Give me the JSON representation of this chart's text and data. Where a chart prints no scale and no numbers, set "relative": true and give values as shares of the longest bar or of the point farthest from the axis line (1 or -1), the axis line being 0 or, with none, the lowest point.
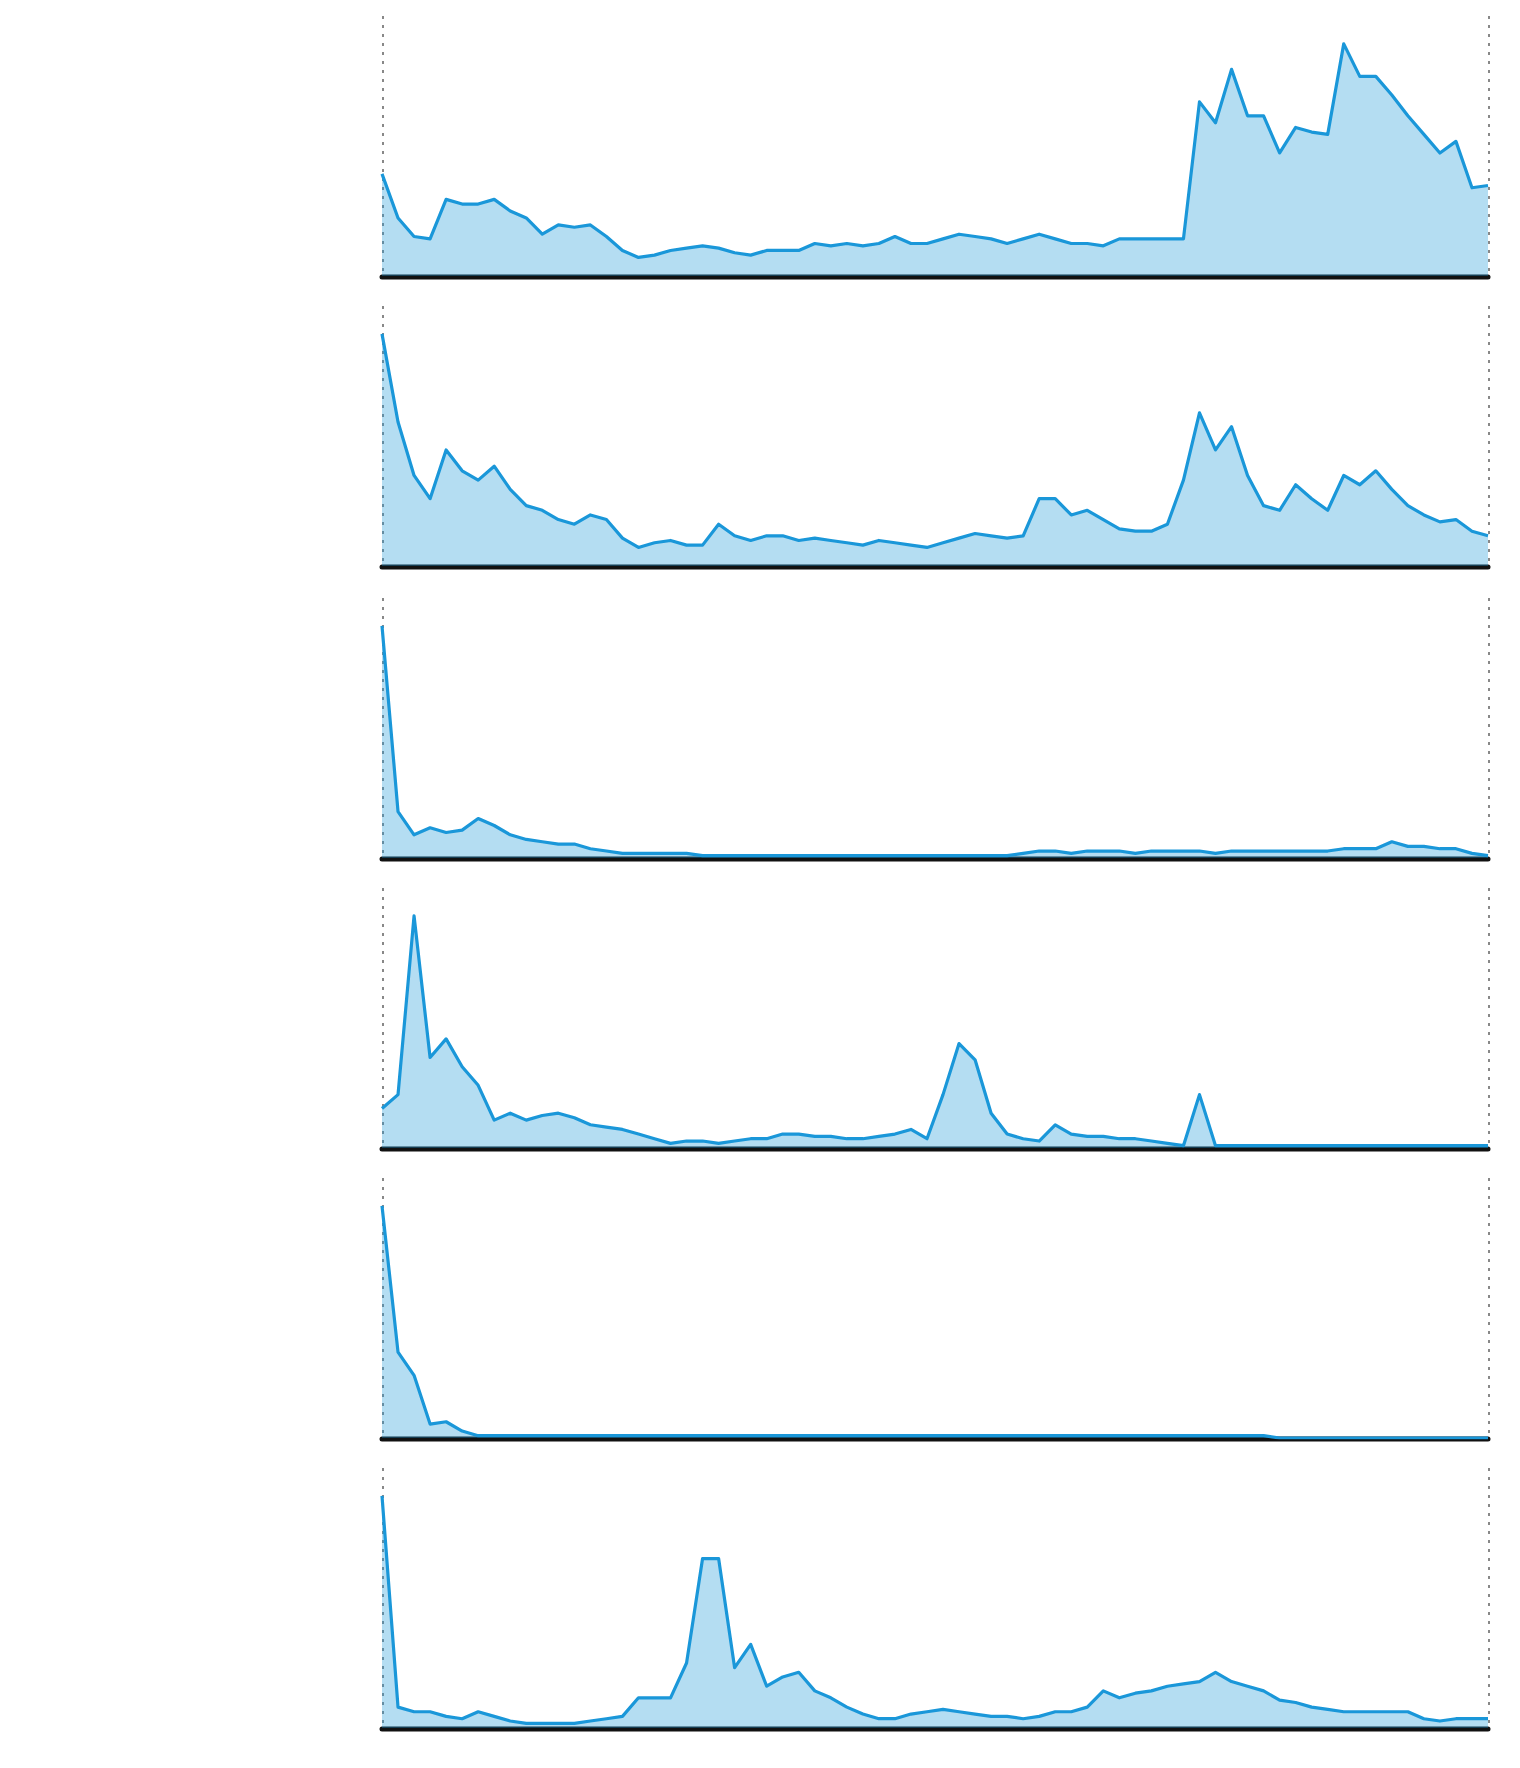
{
  "chart_data": [
    {
      "type": "area",
      "relative": true,
      "color": "#1a97d9",
      "categories": [
        null,
        null,
        null,
        null,
        null,
        null,
        null,
        null,
        null,
        null,
        null,
        null,
        null,
        null,
        null,
        null,
        null,
        null,
        null,
        null,
        null,
        null,
        null,
        null,
        null,
        null,
        null,
        null,
        null,
        null,
        null,
        null,
        null,
        null,
        null,
        null,
        null,
        null,
        null,
        null,
        null,
        null,
        null,
        null,
        null,
        null,
        null,
        null,
        null,
        null,
        null,
        null,
        null,
        null,
        null,
        null,
        null,
        null,
        null,
        null,
        null,
        null,
        null,
        null,
        null,
        null,
        null,
        null,
        null,
        null
      ],
      "values": [
        0.44,
        0.25,
        0.17,
        0.16,
        0.33,
        0.31,
        0.31,
        0.33,
        0.28,
        0.25,
        0.18,
        0.22,
        0.21,
        0.22,
        0.17,
        0.11,
        0.08,
        0.09,
        0.11,
        0.12,
        0.13,
        0.12,
        0.1,
        0.09,
        0.11,
        0.11,
        0.11,
        0.14,
        0.13,
        0.14,
        0.13,
        0.14,
        0.17,
        0.14,
        0.14,
        0.16,
        0.18,
        0.17,
        0.16,
        0.14,
        0.16,
        0.18,
        0.16,
        0.14,
        0.14,
        0.13,
        0.16,
        0.16,
        0.16,
        0.16,
        0.16,
        0.75,
        0.66,
        0.89,
        0.69,
        0.69,
        0.53,
        0.64,
        0.62,
        0.61,
        1,
        0.86,
        0.86,
        0.78,
        0.69,
        0.61,
        0.53,
        0.58,
        0.38,
        0.39
      ]
    },
    {
      "type": "area",
      "relative": true,
      "color": "#1a97d9",
      "categories": [
        null,
        null,
        null,
        null,
        null,
        null,
        null,
        null,
        null,
        null,
        null,
        null,
        null,
        null,
        null,
        null,
        null,
        null,
        null,
        null,
        null,
        null,
        null,
        null,
        null,
        null,
        null,
        null,
        null,
        null,
        null,
        null,
        null,
        null,
        null,
        null,
        null,
        null,
        null,
        null,
        null,
        null,
        null,
        null,
        null,
        null,
        null,
        null,
        null,
        null,
        null,
        null,
        null,
        null,
        null,
        null,
        null,
        null,
        null,
        null,
        null,
        null,
        null,
        null,
        null,
        null,
        null,
        null,
        null,
        null
      ],
      "values": [
        1,
        0.62,
        0.39,
        0.29,
        0.5,
        0.41,
        0.37,
        0.43,
        0.33,
        0.26,
        0.24,
        0.2,
        0.18,
        0.22,
        0.2,
        0.12,
        0.08,
        0.1,
        0.11,
        0.09,
        0.09,
        0.18,
        0.13,
        0.11,
        0.13,
        0.13,
        0.11,
        0.12,
        0.11,
        0.1,
        0.09,
        0.11,
        0.1,
        0.09,
        0.08,
        0.1,
        0.12,
        0.14,
        0.13,
        0.12,
        0.13,
        0.29,
        0.29,
        0.22,
        0.24,
        0.2,
        0.16,
        0.15,
        0.15,
        0.18,
        0.37,
        0.66,
        0.5,
        0.6,
        0.39,
        0.26,
        0.24,
        0.35,
        0.29,
        0.24,
        0.39,
        0.35,
        0.41,
        0.33,
        0.26,
        0.22,
        0.19,
        0.2,
        0.15,
        0.13
      ]
    },
    {
      "type": "area",
      "relative": true,
      "color": "#1a97d9",
      "categories": [
        null,
        null,
        null,
        null,
        null,
        null,
        null,
        null,
        null,
        null,
        null,
        null,
        null,
        null,
        null,
        null,
        null,
        null,
        null,
        null,
        null,
        null,
        null,
        null,
        null,
        null,
        null,
        null,
        null,
        null,
        null,
        null,
        null,
        null,
        null,
        null,
        null,
        null,
        null,
        null,
        null,
        null,
        null,
        null,
        null,
        null,
        null,
        null,
        null,
        null,
        null,
        null,
        null,
        null,
        null,
        null,
        null,
        null,
        null,
        null,
        null,
        null,
        null,
        null,
        null,
        null,
        null,
        null,
        null,
        null
      ],
      "values": [
        1,
        0.2,
        0.1,
        0.13,
        0.11,
        0.12,
        0.17,
        0.14,
        0.1,
        0.08,
        0.07,
        0.06,
        0.06,
        0.04,
        0.03,
        0.02,
        0.02,
        0.02,
        0.02,
        0.02,
        0.01,
        0.01,
        0.01,
        0.01,
        0.01,
        0.01,
        0.01,
        0.01,
        0.01,
        0.01,
        0.01,
        0.01,
        0.01,
        0.01,
        0.01,
        0.01,
        0.01,
        0.01,
        0.01,
        0.01,
        0.02,
        0.03,
        0.03,
        0.02,
        0.03,
        0.03,
        0.03,
        0.02,
        0.03,
        0.03,
        0.03,
        0.03,
        0.02,
        0.03,
        0.03,
        0.03,
        0.03,
        0.03,
        0.03,
        0.03,
        0.04,
        0.04,
        0.04,
        0.07,
        0.05,
        0.05,
        0.04,
        0.04,
        0.02,
        0.01
      ]
    },
    {
      "type": "area",
      "relative": true,
      "color": "#1a97d9",
      "categories": [
        null,
        null,
        null,
        null,
        null,
        null,
        null,
        null,
        null,
        null,
        null,
        null,
        null,
        null,
        null,
        null,
        null,
        null,
        null,
        null,
        null,
        null,
        null,
        null,
        null,
        null,
        null,
        null,
        null,
        null,
        null,
        null,
        null,
        null,
        null,
        null,
        null,
        null,
        null,
        null,
        null,
        null,
        null,
        null,
        null,
        null,
        null,
        null,
        null,
        null,
        null,
        null,
        null,
        null,
        null,
        null,
        null,
        null,
        null,
        null,
        null,
        null,
        null,
        null,
        null,
        null,
        null,
        null,
        null,
        null
      ],
      "values": [
        0.17,
        0.23,
        1,
        0.39,
        0.47,
        0.35,
        0.27,
        0.12,
        0.15,
        0.12,
        0.14,
        0.15,
        0.13,
        0.1,
        0.09,
        0.08,
        0.06,
        0.04,
        0.02,
        0.03,
        0.03,
        0.02,
        0.03,
        0.04,
        0.04,
        0.06,
        0.06,
        0.05,
        0.05,
        0.04,
        0.04,
        0.05,
        0.06,
        0.08,
        0.04,
        0.23,
        0.45,
        0.38,
        0.15,
        0.06,
        0.04,
        0.03,
        0.1,
        0.06,
        0.05,
        0.05,
        0.04,
        0.04,
        0.03,
        0.02,
        0.01,
        0.23,
        0.01,
        0.01,
        0.01,
        0.01,
        0.01,
        0.01,
        0.01,
        0.01,
        0.01,
        0.01,
        0.01,
        0.01,
        0.01,
        0.01,
        0.01,
        0.01,
        0.01,
        0.01
      ]
    },
    {
      "type": "area",
      "relative": true,
      "color": "#1a97d9",
      "categories": [
        null,
        null,
        null,
        null,
        null,
        null,
        null,
        null,
        null,
        null,
        null,
        null,
        null,
        null,
        null,
        null,
        null,
        null,
        null,
        null,
        null,
        null,
        null,
        null,
        null,
        null,
        null,
        null,
        null,
        null,
        null,
        null,
        null,
        null,
        null,
        null,
        null,
        null,
        null,
        null,
        null,
        null,
        null,
        null,
        null,
        null,
        null,
        null,
        null,
        null,
        null,
        null,
        null,
        null,
        null,
        null,
        null,
        null,
        null,
        null,
        null,
        null,
        null,
        null,
        null,
        null,
        null,
        null,
        null,
        null
      ],
      "values": [
        1,
        0.37,
        0.27,
        0.06,
        0.07,
        0.03,
        0.01,
        0.01,
        0.01,
        0.01,
        0.01,
        0.01,
        0.01,
        0.01,
        0.01,
        0.01,
        0.01,
        0.01,
        0.01,
        0.01,
        0.01,
        0.01,
        0.01,
        0.01,
        0.01,
        0.01,
        0.01,
        0.01,
        0.01,
        0.01,
        0.01,
        0.01,
        0.01,
        0.01,
        0.01,
        0.01,
        0.01,
        0.01,
        0.01,
        0.01,
        0.01,
        0.01,
        0.01,
        0.01,
        0.01,
        0.01,
        0.01,
        0.01,
        0.01,
        0.01,
        0.01,
        0.01,
        0.01,
        0.01,
        0.01,
        0.01,
        0,
        0,
        0,
        0,
        0,
        0,
        0,
        0,
        0,
        0,
        0,
        0,
        0,
        0
      ]
    },
    {
      "type": "area",
      "relative": true,
      "color": "#1a97d9",
      "categories": [
        null,
        null,
        null,
        null,
        null,
        null,
        null,
        null,
        null,
        null,
        null,
        null,
        null,
        null,
        null,
        null,
        null,
        null,
        null,
        null,
        null,
        null,
        null,
        null,
        null,
        null,
        null,
        null,
        null,
        null,
        null,
        null,
        null,
        null,
        null,
        null,
        null,
        null,
        null,
        null,
        null,
        null,
        null,
        null,
        null,
        null,
        null,
        null,
        null,
        null,
        null,
        null,
        null,
        null,
        null,
        null,
        null,
        null,
        null,
        null,
        null,
        null,
        null,
        null,
        null,
        null,
        null,
        null,
        null,
        null
      ],
      "values": [
        1,
        0.09,
        0.07,
        0.07,
        0.05,
        0.04,
        0.07,
        0.05,
        0.03,
        0.02,
        0.02,
        0.02,
        0.02,
        0.03,
        0.04,
        0.05,
        0.13,
        0.13,
        0.13,
        0.28,
        0.73,
        0.73,
        0.26,
        0.36,
        0.18,
        0.22,
        0.24,
        0.16,
        0.13,
        0.09,
        0.06,
        0.04,
        0.04,
        0.06,
        0.07,
        0.08,
        0.07,
        0.06,
        0.05,
        0.05,
        0.04,
        0.05,
        0.07,
        0.07,
        0.09,
        0.16,
        0.13,
        0.15,
        0.16,
        0.18,
        0.19,
        0.2,
        0.24,
        0.2,
        0.18,
        0.16,
        0.12,
        0.11,
        0.09,
        0.08,
        0.07,
        0.07,
        0.07,
        0.07,
        0.07,
        0.04,
        0.03,
        0.04,
        0.04,
        0.04
      ]
    }
  ]
}
